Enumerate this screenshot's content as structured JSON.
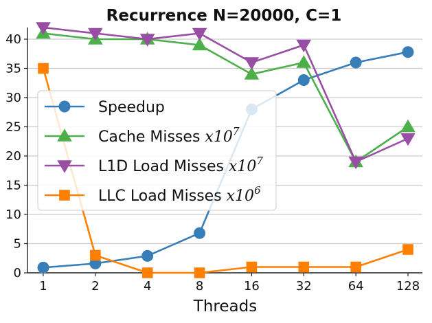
{
  "chart_data": {
    "type": "line",
    "title": "Recurrence N=20000, C=1",
    "xlabel": "Threads",
    "ylabel": "",
    "categories": [
      "1",
      "2",
      "4",
      "8",
      "16",
      "32",
      "64",
      "128"
    ],
    "ylim": [
      0,
      42
    ],
    "yticks": [
      0,
      5,
      10,
      15,
      20,
      25,
      30,
      35,
      40
    ],
    "grid": "horizontal",
    "legend_position": "center-left",
    "series": [
      {
        "name": "Speedup",
        "label_main": "Speedup",
        "label_var": "",
        "label_exp": "",
        "color": "#377eb8",
        "marker": "circle",
        "values": [
          0.9,
          1.6,
          2.9,
          6.8,
          28,
          33,
          36,
          37.8
        ]
      },
      {
        "name": "Cache Misses x10^7",
        "label_main": "Cache Misses ",
        "label_var": "x10",
        "label_exp": "7",
        "color": "#4daf4a",
        "marker": "triangle-up",
        "values": [
          41,
          40,
          40,
          39,
          34,
          36,
          19,
          25
        ]
      },
      {
        "name": "L1D Load Misses x10^7",
        "label_main": "L1D Load Misses ",
        "label_var": "x10",
        "label_exp": "7",
        "color": "#984ea3",
        "marker": "triangle-down",
        "values": [
          42,
          41,
          40,
          41,
          36,
          39,
          19,
          23
        ]
      },
      {
        "name": "LLC Load Misses x10^6",
        "label_main": "LLC Load Misses ",
        "label_var": "x10",
        "label_exp": "6",
        "color": "#ff7f00",
        "marker": "square",
        "values": [
          35,
          3,
          0,
          0,
          1,
          1,
          1,
          4
        ]
      }
    ]
  }
}
